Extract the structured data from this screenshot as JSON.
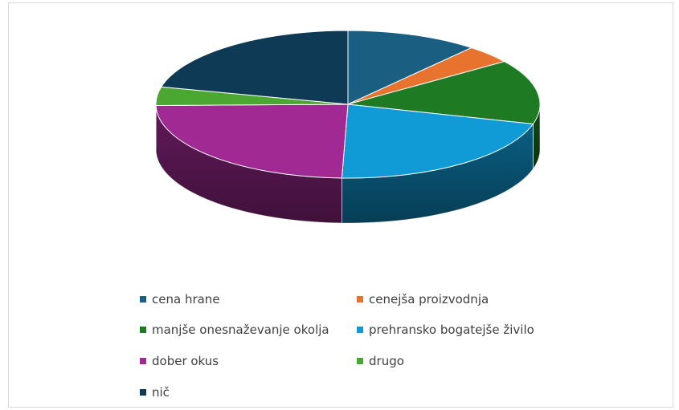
{
  "chart_data": {
    "type": "pie",
    "title": "",
    "categories": [
      "cena hrane",
      "cenejša proizvodnja",
      "manjše onesnaževanje okolja",
      "prehransko bogatejše živilo",
      "dober okus",
      "drugo",
      "nič"
    ],
    "values": [
      11,
      4,
      14,
      21,
      24,
      4,
      21
    ],
    "unit": "",
    "legend_position": "bottom",
    "three_d": true,
    "colors": [
      "#1a5f82",
      "#e8732f",
      "#1f7a24",
      "#109ad6",
      "#a02993",
      "#4aa832",
      "#0e3a55"
    ],
    "legend": [
      {
        "label": "cena hrane",
        "color": "#1a5f82"
      },
      {
        "label": "cenejša proizvodnja",
        "color": "#e8732f"
      },
      {
        "label": "manjše onesnaževanje okolja",
        "color": "#1f7a24"
      },
      {
        "label": "prehransko bogatejše živilo",
        "color": "#109ad6"
      },
      {
        "label": "dober okus",
        "color": "#a02993"
      },
      {
        "label": "drugo",
        "color": "#4aa832"
      },
      {
        "label": "nič",
        "color": "#0e3a55"
      }
    ]
  }
}
